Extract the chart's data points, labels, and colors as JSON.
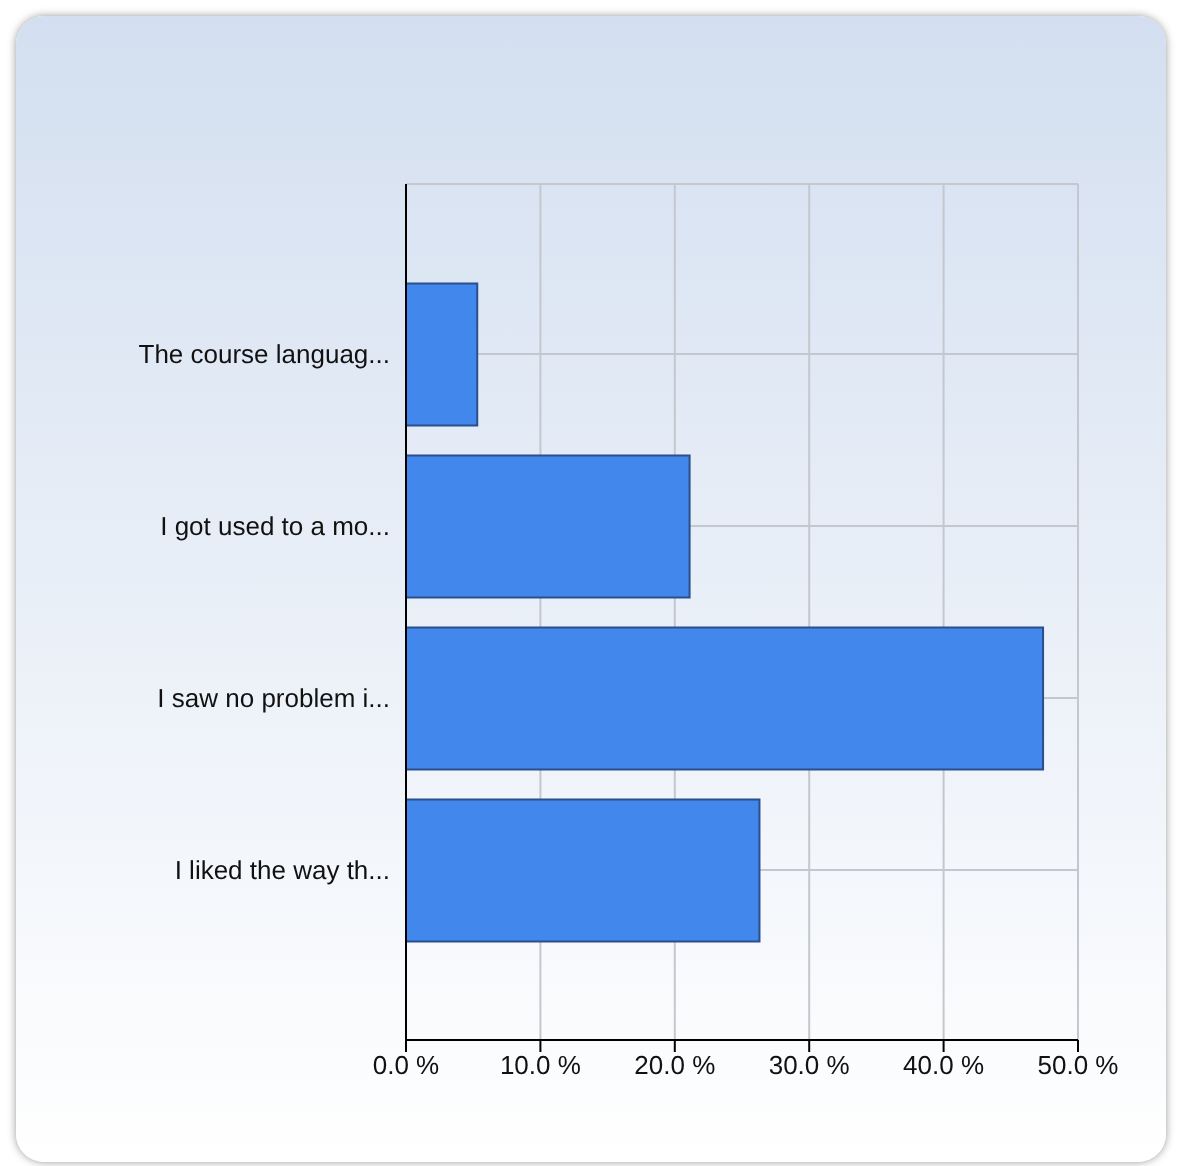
{
  "chart_data": {
    "type": "bar",
    "orientation": "horizontal",
    "categories": [
      "The course languag...",
      "I got used to a mo...",
      "I saw no problem i...",
      "I liked the way th..."
    ],
    "values": [
      5.3,
      21.1,
      47.4,
      26.3
    ],
    "color": "#4287ec",
    "xlim": [
      0,
      50
    ],
    "xticks": [
      {
        "value": 0,
        "label": "0.0 %"
      },
      {
        "value": 10,
        "label": "10.0 %"
      },
      {
        "value": 20,
        "label": "20.0 %"
      },
      {
        "value": 30,
        "label": "30.0 %"
      },
      {
        "value": 40,
        "label": "40.0 %"
      },
      {
        "value": 50,
        "label": "50.0 %"
      }
    ],
    "grid": true
  }
}
